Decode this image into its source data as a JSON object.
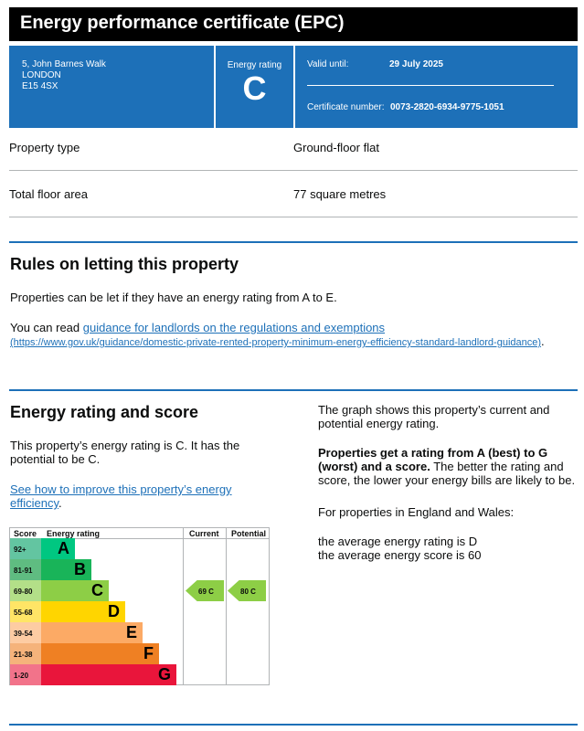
{
  "title": "Energy performance certificate (EPC)",
  "address": {
    "line1": "5, John Barnes Walk",
    "line2": "LONDON",
    "line3": "E15 4SX"
  },
  "energy_rating": {
    "label": "Energy rating",
    "value": "C"
  },
  "valid_until": {
    "label": "Valid until:",
    "value": "29 July 2025"
  },
  "certificate_number": {
    "label": "Certificate number:",
    "value": "0073-2820-6934-9775-1051"
  },
  "property_type": {
    "label": "Property type",
    "value": "Ground-floor flat"
  },
  "floor_area": {
    "label": "Total floor area",
    "value": "77 square metres"
  },
  "letting": {
    "heading": "Rules on letting this property",
    "p1": "Properties can be let if they have an energy rating from A to E.",
    "p2_prefix": "You can read ",
    "link": "guidance for landlords on the regulations and exemptions",
    "link_url_text": "(https://www.gov.uk/guidance/domestic-private-rented-property-minimum-energy-efficiency-standard-landlord-guidance)",
    "p2_suffix": "."
  },
  "rating_section": {
    "heading": "Energy rating and score",
    "p1": "This property’s energy rating is C. It has the potential to be C.",
    "link": "See how to improve this property’s energy efficiency",
    "link_suffix": ".",
    "right_p1": "The graph shows this property’s current and potential energy rating.",
    "right_bold": "Properties get a rating from A (best) to G (worst) and a score.",
    "right_rest": " The better the rating and score, the lower your energy bills are likely to be.",
    "right_p3": "For properties in England and Wales:",
    "avg_rating": "the average energy rating is D",
    "avg_score": "the average energy score is 60"
  },
  "chart_data": {
    "type": "table",
    "headers": [
      "Score",
      "Energy rating",
      "Current",
      "Potential"
    ],
    "bands": [
      {
        "score": "92+",
        "letter": "A",
        "color": "#00c781",
        "score_bg": "#63c5a1"
      },
      {
        "score": "81-91",
        "letter": "B",
        "color": "#19b459",
        "score_bg": "#5fbc81"
      },
      {
        "score": "69-80",
        "letter": "C",
        "color": "#8dce46",
        "score_bg": "#b3df88"
      },
      {
        "score": "55-68",
        "letter": "D",
        "color": "#ffd500",
        "score_bg": "#ffe566"
      },
      {
        "score": "39-54",
        "letter": "E",
        "color": "#fcaa65",
        "score_bg": "#fdcca3"
      },
      {
        "score": "21-38",
        "letter": "F",
        "color": "#ef8023",
        "score_bg": "#f5b37b"
      },
      {
        "score": "1-20",
        "letter": "G",
        "color": "#e9153b",
        "score_bg": "#f2738a"
      }
    ],
    "current": {
      "score": 69,
      "letter": "C",
      "label": "69  C"
    },
    "potential": {
      "score": 80,
      "letter": "C",
      "label": "80  C"
    }
  }
}
